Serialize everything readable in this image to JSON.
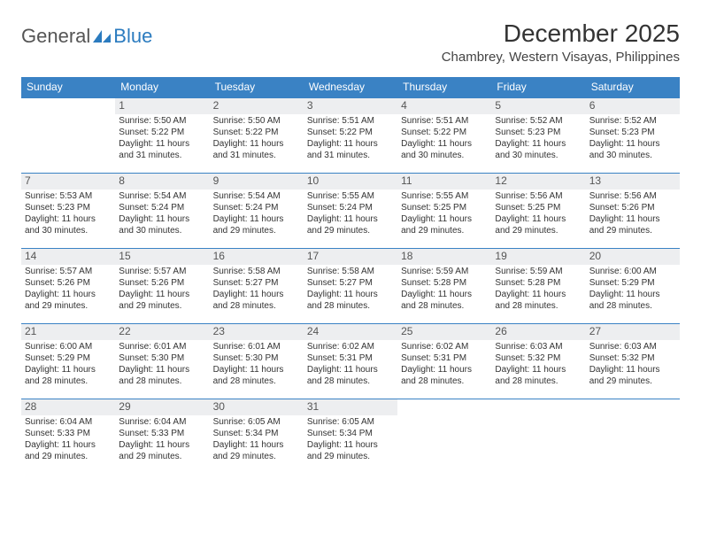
{
  "logo": {
    "general": "General",
    "blue": "Blue",
    "icon_fill": "#2b7bbf"
  },
  "title": "December 2025",
  "location": "Chambrey, Western Visayas, Philippines",
  "colors": {
    "header_bg": "#3a82c4",
    "header_text": "#ffffff",
    "daynum_bg": "#edeef0",
    "daynum_text": "#555555",
    "body_text": "#333333",
    "row_border": "#3a82c4"
  },
  "day_headers": [
    "Sunday",
    "Monday",
    "Tuesday",
    "Wednesday",
    "Thursday",
    "Friday",
    "Saturday"
  ],
  "start_offset": 1,
  "days": [
    {
      "n": 1,
      "sunrise": "5:50 AM",
      "sunset": "5:22 PM",
      "daylight": "11 hours and 31 minutes."
    },
    {
      "n": 2,
      "sunrise": "5:50 AM",
      "sunset": "5:22 PM",
      "daylight": "11 hours and 31 minutes."
    },
    {
      "n": 3,
      "sunrise": "5:51 AM",
      "sunset": "5:22 PM",
      "daylight": "11 hours and 31 minutes."
    },
    {
      "n": 4,
      "sunrise": "5:51 AM",
      "sunset": "5:22 PM",
      "daylight": "11 hours and 30 minutes."
    },
    {
      "n": 5,
      "sunrise": "5:52 AM",
      "sunset": "5:23 PM",
      "daylight": "11 hours and 30 minutes."
    },
    {
      "n": 6,
      "sunrise": "5:52 AM",
      "sunset": "5:23 PM",
      "daylight": "11 hours and 30 minutes."
    },
    {
      "n": 7,
      "sunrise": "5:53 AM",
      "sunset": "5:23 PM",
      "daylight": "11 hours and 30 minutes."
    },
    {
      "n": 8,
      "sunrise": "5:54 AM",
      "sunset": "5:24 PM",
      "daylight": "11 hours and 30 minutes."
    },
    {
      "n": 9,
      "sunrise": "5:54 AM",
      "sunset": "5:24 PM",
      "daylight": "11 hours and 29 minutes."
    },
    {
      "n": 10,
      "sunrise": "5:55 AM",
      "sunset": "5:24 PM",
      "daylight": "11 hours and 29 minutes."
    },
    {
      "n": 11,
      "sunrise": "5:55 AM",
      "sunset": "5:25 PM",
      "daylight": "11 hours and 29 minutes."
    },
    {
      "n": 12,
      "sunrise": "5:56 AM",
      "sunset": "5:25 PM",
      "daylight": "11 hours and 29 minutes."
    },
    {
      "n": 13,
      "sunrise": "5:56 AM",
      "sunset": "5:26 PM",
      "daylight": "11 hours and 29 minutes."
    },
    {
      "n": 14,
      "sunrise": "5:57 AM",
      "sunset": "5:26 PM",
      "daylight": "11 hours and 29 minutes."
    },
    {
      "n": 15,
      "sunrise": "5:57 AM",
      "sunset": "5:26 PM",
      "daylight": "11 hours and 29 minutes."
    },
    {
      "n": 16,
      "sunrise": "5:58 AM",
      "sunset": "5:27 PM",
      "daylight": "11 hours and 28 minutes."
    },
    {
      "n": 17,
      "sunrise": "5:58 AM",
      "sunset": "5:27 PM",
      "daylight": "11 hours and 28 minutes."
    },
    {
      "n": 18,
      "sunrise": "5:59 AM",
      "sunset": "5:28 PM",
      "daylight": "11 hours and 28 minutes."
    },
    {
      "n": 19,
      "sunrise": "5:59 AM",
      "sunset": "5:28 PM",
      "daylight": "11 hours and 28 minutes."
    },
    {
      "n": 20,
      "sunrise": "6:00 AM",
      "sunset": "5:29 PM",
      "daylight": "11 hours and 28 minutes."
    },
    {
      "n": 21,
      "sunrise": "6:00 AM",
      "sunset": "5:29 PM",
      "daylight": "11 hours and 28 minutes."
    },
    {
      "n": 22,
      "sunrise": "6:01 AM",
      "sunset": "5:30 PM",
      "daylight": "11 hours and 28 minutes."
    },
    {
      "n": 23,
      "sunrise": "6:01 AM",
      "sunset": "5:30 PM",
      "daylight": "11 hours and 28 minutes."
    },
    {
      "n": 24,
      "sunrise": "6:02 AM",
      "sunset": "5:31 PM",
      "daylight": "11 hours and 28 minutes."
    },
    {
      "n": 25,
      "sunrise": "6:02 AM",
      "sunset": "5:31 PM",
      "daylight": "11 hours and 28 minutes."
    },
    {
      "n": 26,
      "sunrise": "6:03 AM",
      "sunset": "5:32 PM",
      "daylight": "11 hours and 28 minutes."
    },
    {
      "n": 27,
      "sunrise": "6:03 AM",
      "sunset": "5:32 PM",
      "daylight": "11 hours and 29 minutes."
    },
    {
      "n": 28,
      "sunrise": "6:04 AM",
      "sunset": "5:33 PM",
      "daylight": "11 hours and 29 minutes."
    },
    {
      "n": 29,
      "sunrise": "6:04 AM",
      "sunset": "5:33 PM",
      "daylight": "11 hours and 29 minutes."
    },
    {
      "n": 30,
      "sunrise": "6:05 AM",
      "sunset": "5:34 PM",
      "daylight": "11 hours and 29 minutes."
    },
    {
      "n": 31,
      "sunrise": "6:05 AM",
      "sunset": "5:34 PM",
      "daylight": "11 hours and 29 minutes."
    }
  ],
  "labels": {
    "sunrise": "Sunrise:",
    "sunset": "Sunset:",
    "daylight": "Daylight:"
  }
}
